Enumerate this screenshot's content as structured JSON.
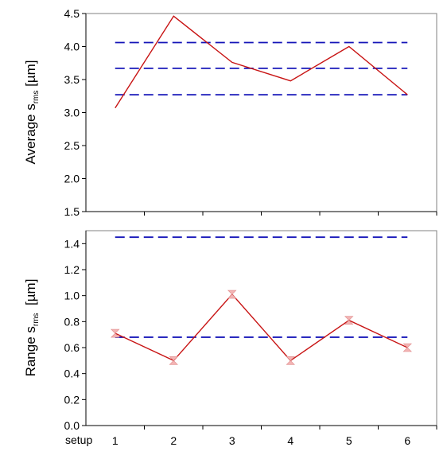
{
  "chart_data": [
    {
      "type": "line",
      "ylabel_main": "Average s",
      "ylabel_sub": "rms",
      "ylabel_unit": " [µm]",
      "ylim": [
        1.5,
        4.5
      ],
      "yticks": [
        1.5,
        2.0,
        2.5,
        3.0,
        3.5,
        4.0,
        4.5
      ],
      "ytick_labels": [
        "1.5",
        "2.0",
        "2.5",
        "3.0",
        "3.5",
        "4.0",
        "4.5"
      ],
      "x": [
        1,
        2,
        3,
        4,
        5,
        6
      ],
      "values": [
        3.07,
        4.46,
        3.76,
        3.48,
        4.0,
        3.27
      ],
      "markers": false,
      "reference_lines": [
        4.06,
        3.67,
        3.27
      ],
      "colors": {
        "series": "#c81414",
        "reference": "#1515b8"
      }
    },
    {
      "type": "line",
      "ylabel_main": "Range s",
      "ylabel_sub": "rms",
      "ylabel_unit": "  [µm]",
      "ylim": [
        0.0,
        1.5
      ],
      "yticks": [
        0.0,
        0.2,
        0.4,
        0.6,
        0.8,
        1.0,
        1.2,
        1.4
      ],
      "ytick_labels": [
        "0.0",
        "0.2",
        "0.4",
        "0.6",
        "0.8",
        "1.0",
        "1.2",
        "1.4"
      ],
      "x": [
        1,
        2,
        3,
        4,
        5,
        6
      ],
      "xtick_labels": [
        "1",
        "2",
        "3",
        "4",
        "5",
        "6"
      ],
      "xlabel": "setup",
      "values": [
        0.71,
        0.5,
        1.01,
        0.5,
        0.81,
        0.6
      ],
      "markers": true,
      "reference_lines": [
        1.45,
        0.68
      ],
      "colors": {
        "series": "#c81414",
        "marker": "#f3b4b4",
        "reference": "#1515b8"
      }
    }
  ]
}
